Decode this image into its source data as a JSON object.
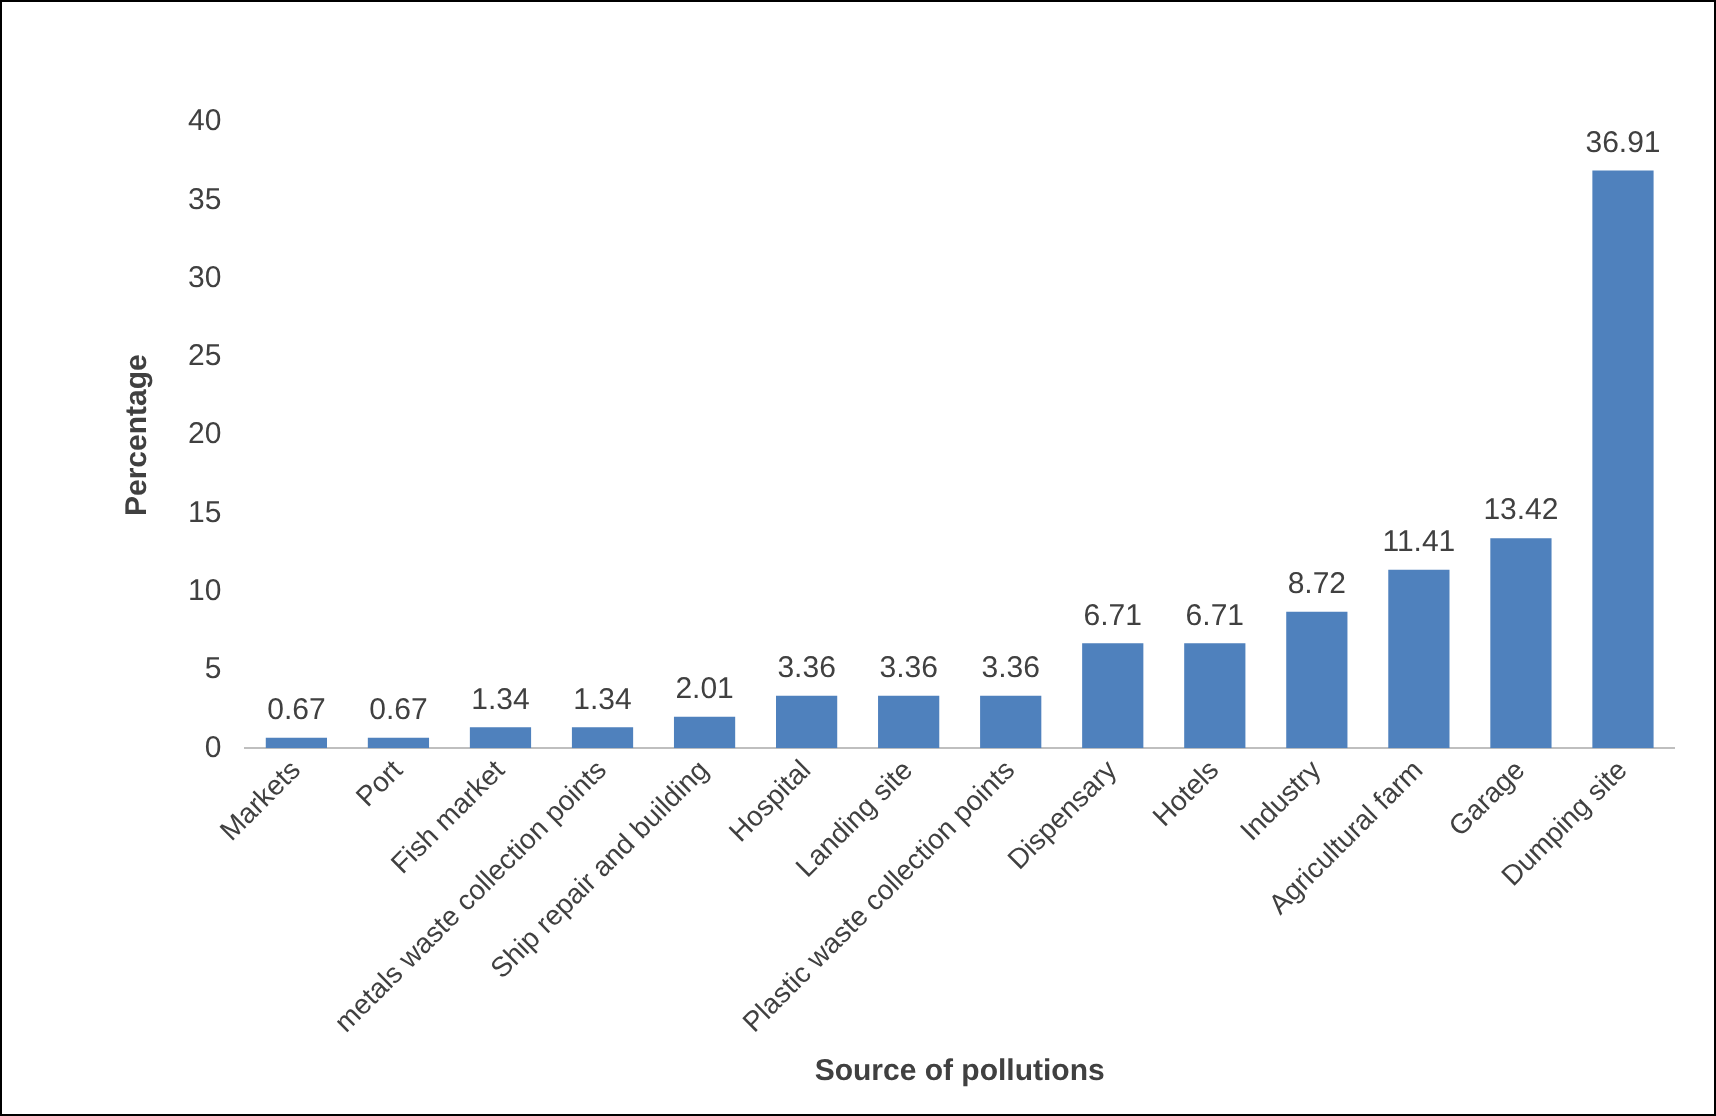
{
  "chart_data": {
    "type": "bar",
    "xlabel": "Source of pollutions",
    "ylabel": "Percentage",
    "categories": [
      "Markets",
      "Port",
      "Fish market",
      "metals waste collection points",
      "Ship repair and building",
      "Hospital",
      "Landing site",
      "Plastic waste collection points",
      "Dispensary",
      "Hotels",
      "Industry",
      "Agricultural farm",
      "Garage",
      "Dumping site"
    ],
    "values": [
      0.67,
      0.67,
      1.34,
      1.34,
      2.01,
      3.36,
      3.36,
      3.36,
      6.71,
      6.71,
      8.72,
      11.41,
      13.42,
      36.91
    ],
    "color": "#4f81bd",
    "ylim": [
      0,
      40
    ],
    "yticks": [
      0,
      5,
      10,
      15,
      20,
      25,
      30,
      35,
      40
    ],
    "grid": false,
    "legend": false,
    "data_labels": true
  }
}
